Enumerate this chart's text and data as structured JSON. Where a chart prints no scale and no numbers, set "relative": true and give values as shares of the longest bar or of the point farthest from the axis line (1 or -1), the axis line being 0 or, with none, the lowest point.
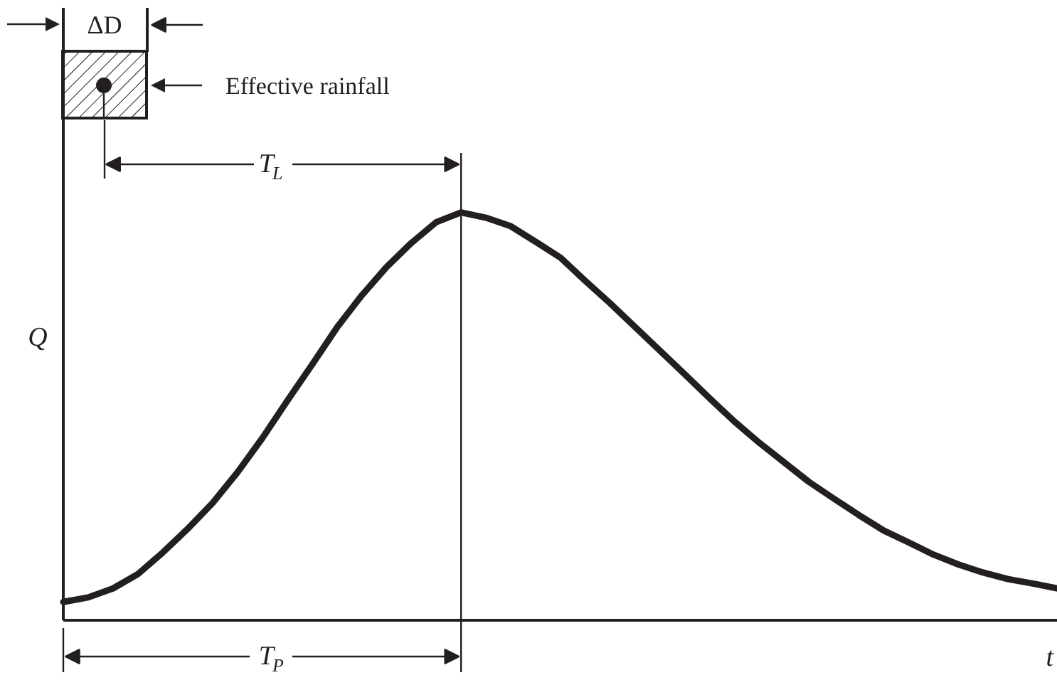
{
  "chart_data": {
    "type": "line",
    "relative": true,
    "categories": [
      null,
      null,
      null,
      null,
      null,
      null,
      null,
      null,
      null,
      null,
      null,
      null,
      null,
      null,
      null,
      null,
      null,
      null,
      null,
      null,
      null,
      null,
      null,
      null,
      null,
      null,
      null,
      null,
      null,
      null,
      null,
      null,
      null,
      null,
      null,
      null,
      null,
      null,
      null,
      null,
      null
    ],
    "series": [
      {
        "color": "#231f20",
        "values": [
          0.045,
          0.056,
          0.078,
          0.113,
          0.166,
          0.224,
          0.287,
          0.362,
          0.446,
          0.537,
          0.626,
          0.717,
          0.796,
          0.866,
          0.925,
          0.976,
          1.0,
          0.987,
          0.966,
          0.928,
          0.889,
          0.832,
          0.777,
          0.719,
          0.661,
          0.603,
          0.544,
          0.487,
          0.435,
          0.387,
          0.339,
          0.298,
          0.258,
          0.22,
          0.191,
          0.161,
          0.137,
          0.117,
          0.101,
          0.09,
          0.078
        ]
      }
    ],
    "xlabel": "t",
    "ylabel": "Q",
    "annotations": [
      "ΔD",
      "Effective rainfall",
      "T$_{L}$",
      "T$_{P}$"
    ]
  }
}
